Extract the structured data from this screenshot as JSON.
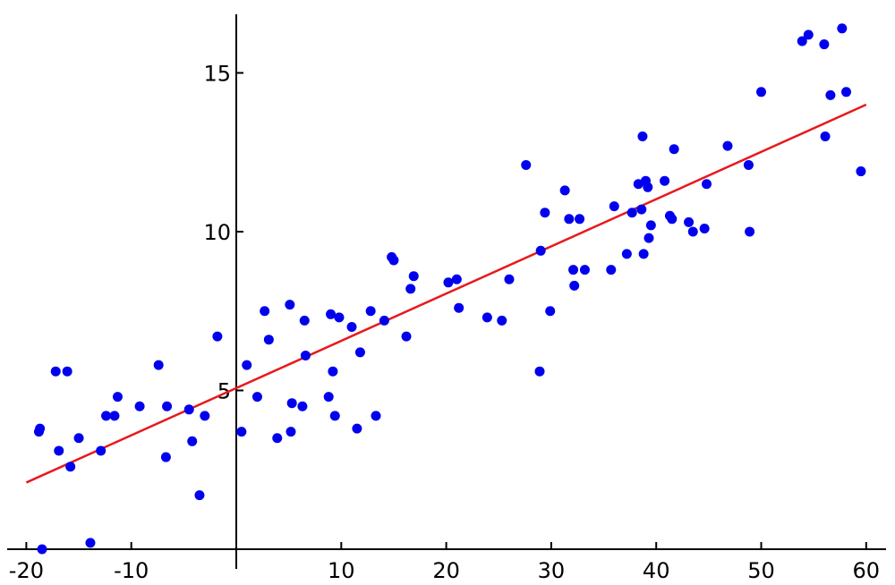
{
  "chart_data": {
    "type": "scatter",
    "title": "",
    "xlabel": "",
    "ylabel": "",
    "xlim": [
      -20,
      61
    ],
    "ylim": [
      0,
      16.7
    ],
    "x_ticks": [
      -20,
      -10,
      10,
      20,
      30,
      40,
      50,
      60
    ],
    "y_ticks": [
      5,
      10,
      15
    ],
    "x_tick_labels": [
      "-20",
      "-10",
      "10",
      "20",
      "30",
      "40",
      "50",
      "60"
    ],
    "y_tick_labels": [
      "5",
      "10",
      "15"
    ],
    "grid": false,
    "colors": {
      "points": "#0000ee",
      "fit_line": "#e8191c",
      "axes": "#000000"
    },
    "series": [
      {
        "kind": "points",
        "x": [
          -18.8,
          -18.5,
          -18.7,
          -17.2,
          -16.9,
          -16.1,
          -15.8,
          -15.0,
          -13.9,
          -12.9,
          -12.4,
          -11.6,
          -11.3,
          -9.2,
          -7.4,
          -6.7,
          -6.6,
          -4.5,
          -4.2,
          -3.5,
          -3.0,
          -1.8,
          0.5,
          1.0,
          2.0,
          2.7,
          3.1,
          3.9,
          5.1,
          5.2,
          5.3,
          6.3,
          6.5,
          6.6,
          8.8,
          9.0,
          9.2,
          9.4,
          9.8,
          11.0,
          11.5,
          11.8,
          12.8,
          13.3,
          14.1,
          14.8,
          15.0,
          16.2,
          16.6,
          16.9,
          20.2,
          21.0,
          21.2,
          23.9,
          25.3,
          26.0,
          27.6,
          28.9,
          29.0,
          29.4,
          29.9,
          31.3,
          31.7,
          32.1,
          32.2,
          32.7,
          33.2,
          35.7,
          36.0,
          37.2,
          37.7,
          38.3,
          38.6,
          38.7,
          38.8,
          39.0,
          39.2,
          39.3,
          39.5,
          40.8,
          41.3,
          41.5,
          41.7,
          43.1,
          43.5,
          44.6,
          44.8,
          46.8,
          48.8,
          48.9,
          50.0,
          53.9,
          54.5,
          56.0,
          56.1,
          56.6,
          57.7,
          58.1,
          59.5
        ],
        "y": [
          3.7,
          0.0,
          3.8,
          5.6,
          3.1,
          5.6,
          2.6,
          3.5,
          0.2,
          3.1,
          4.2,
          4.2,
          4.8,
          4.5,
          5.8,
          2.9,
          4.5,
          4.4,
          3.4,
          1.7,
          4.2,
          6.7,
          3.7,
          5.8,
          4.8,
          7.5,
          6.6,
          3.5,
          7.7,
          3.7,
          4.6,
          4.5,
          7.2,
          6.1,
          4.8,
          7.4,
          5.6,
          4.2,
          7.3,
          7.0,
          3.8,
          6.2,
          7.5,
          4.2,
          7.2,
          9.2,
          9.1,
          6.7,
          8.2,
          8.6,
          8.4,
          8.5,
          7.6,
          7.3,
          7.2,
          8.5,
          12.1,
          5.6,
          9.4,
          10.6,
          7.5,
          11.3,
          10.4,
          8.8,
          8.3,
          10.4,
          8.8,
          8.8,
          10.8,
          9.3,
          10.6,
          11.5,
          10.7,
          13.0,
          9.3,
          11.6,
          11.4,
          9.8,
          10.2,
          11.6,
          10.5,
          10.4,
          12.6,
          10.3,
          10.0,
          10.1,
          11.5,
          12.7,
          12.1,
          10.0,
          14.4,
          16.0,
          16.2,
          15.9,
          13.0,
          14.3,
          16.4,
          14.4,
          11.9
        ]
      },
      {
        "kind": "fit_line",
        "x": [
          -20,
          60
        ],
        "y": [
          2.1,
          14.0
        ]
      }
    ]
  }
}
